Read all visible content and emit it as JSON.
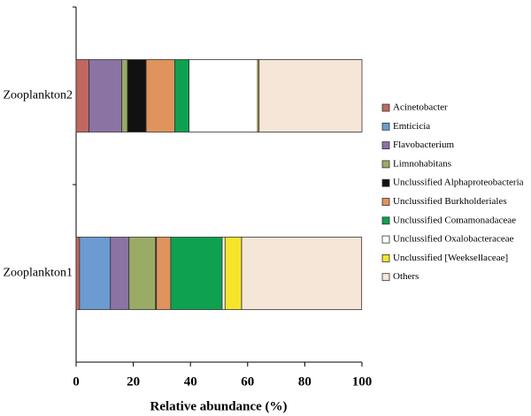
{
  "chart_data": {
    "type": "stacked-bar-horizontal",
    "x_label": "Relative abundance (%)",
    "categories": [
      "Zooplankton1",
      "Zooplankton2"
    ],
    "series": [
      {
        "name": "Acinetobacter",
        "color": "#c0675f",
        "values": [
          1.2,
          4.5
        ]
      },
      {
        "name": "Emticicia",
        "color": "#6b9bd1",
        "values": [
          10.8,
          0
        ]
      },
      {
        "name": "Flavobacterium",
        "color": "#8b73a4",
        "values": [
          6.5,
          11.5
        ]
      },
      {
        "name": "Limnohabitans",
        "color": "#9aab66",
        "values": [
          9.3,
          2
        ]
      },
      {
        "name": "Unclussified Alphaproteobacteria",
        "color": "#111111",
        "values": [
          0.3,
          6.5
        ]
      },
      {
        "name": "Unclussified Burkholderiales",
        "color": "#e0935c",
        "values": [
          5,
          10
        ]
      },
      {
        "name": "Unclussified Comamonadaceae",
        "color": "#0ea150",
        "values": [
          18,
          5
        ]
      },
      {
        "name": "Unclussified Oxalobacteraceae",
        "color": "#ffffff",
        "values": [
          1,
          24
        ]
      },
      {
        "name": "Unclussified [Weeksellaceae]",
        "color": "#f5e52a",
        "values": [
          5.8,
          0.5
        ]
      },
      {
        "name": "Others",
        "color": "#f5e6d8",
        "values": [
          42,
          36
        ]
      }
    ],
    "xlim": [
      0,
      100
    ],
    "xticks": [
      0,
      20,
      40,
      60,
      80,
      100
    ],
    "legend": "right"
  }
}
